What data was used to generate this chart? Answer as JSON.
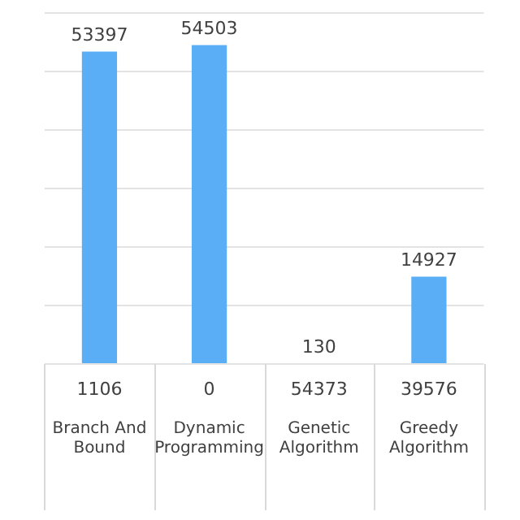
{
  "chart_data": {
    "type": "bar",
    "categories": [
      "Branch And Bound",
      "Dynamic Programming",
      "Genetic Algorithm",
      "Greedy Algorithm"
    ],
    "values": [
      53397,
      54503,
      130,
      14927
    ],
    "color": "#5aaef5",
    "data_labels": true,
    "ylim": [
      0,
      60000
    ],
    "yticks": [
      {
        "value": 0,
        "label": null
      },
      {
        "value": 10000,
        "label": null
      },
      {
        "value": 20000,
        "label": null
      },
      {
        "value": 30000,
        "label": null
      },
      {
        "value": 40000,
        "label": null
      },
      {
        "value": 50000,
        "label": null
      },
      {
        "value": 60000,
        "label": null
      }
    ],
    "tick_labels": "x",
    "grid": "y",
    "legend": false,
    "annotations": [
      "1106",
      "0",
      "54373",
      "39576"
    ]
  }
}
